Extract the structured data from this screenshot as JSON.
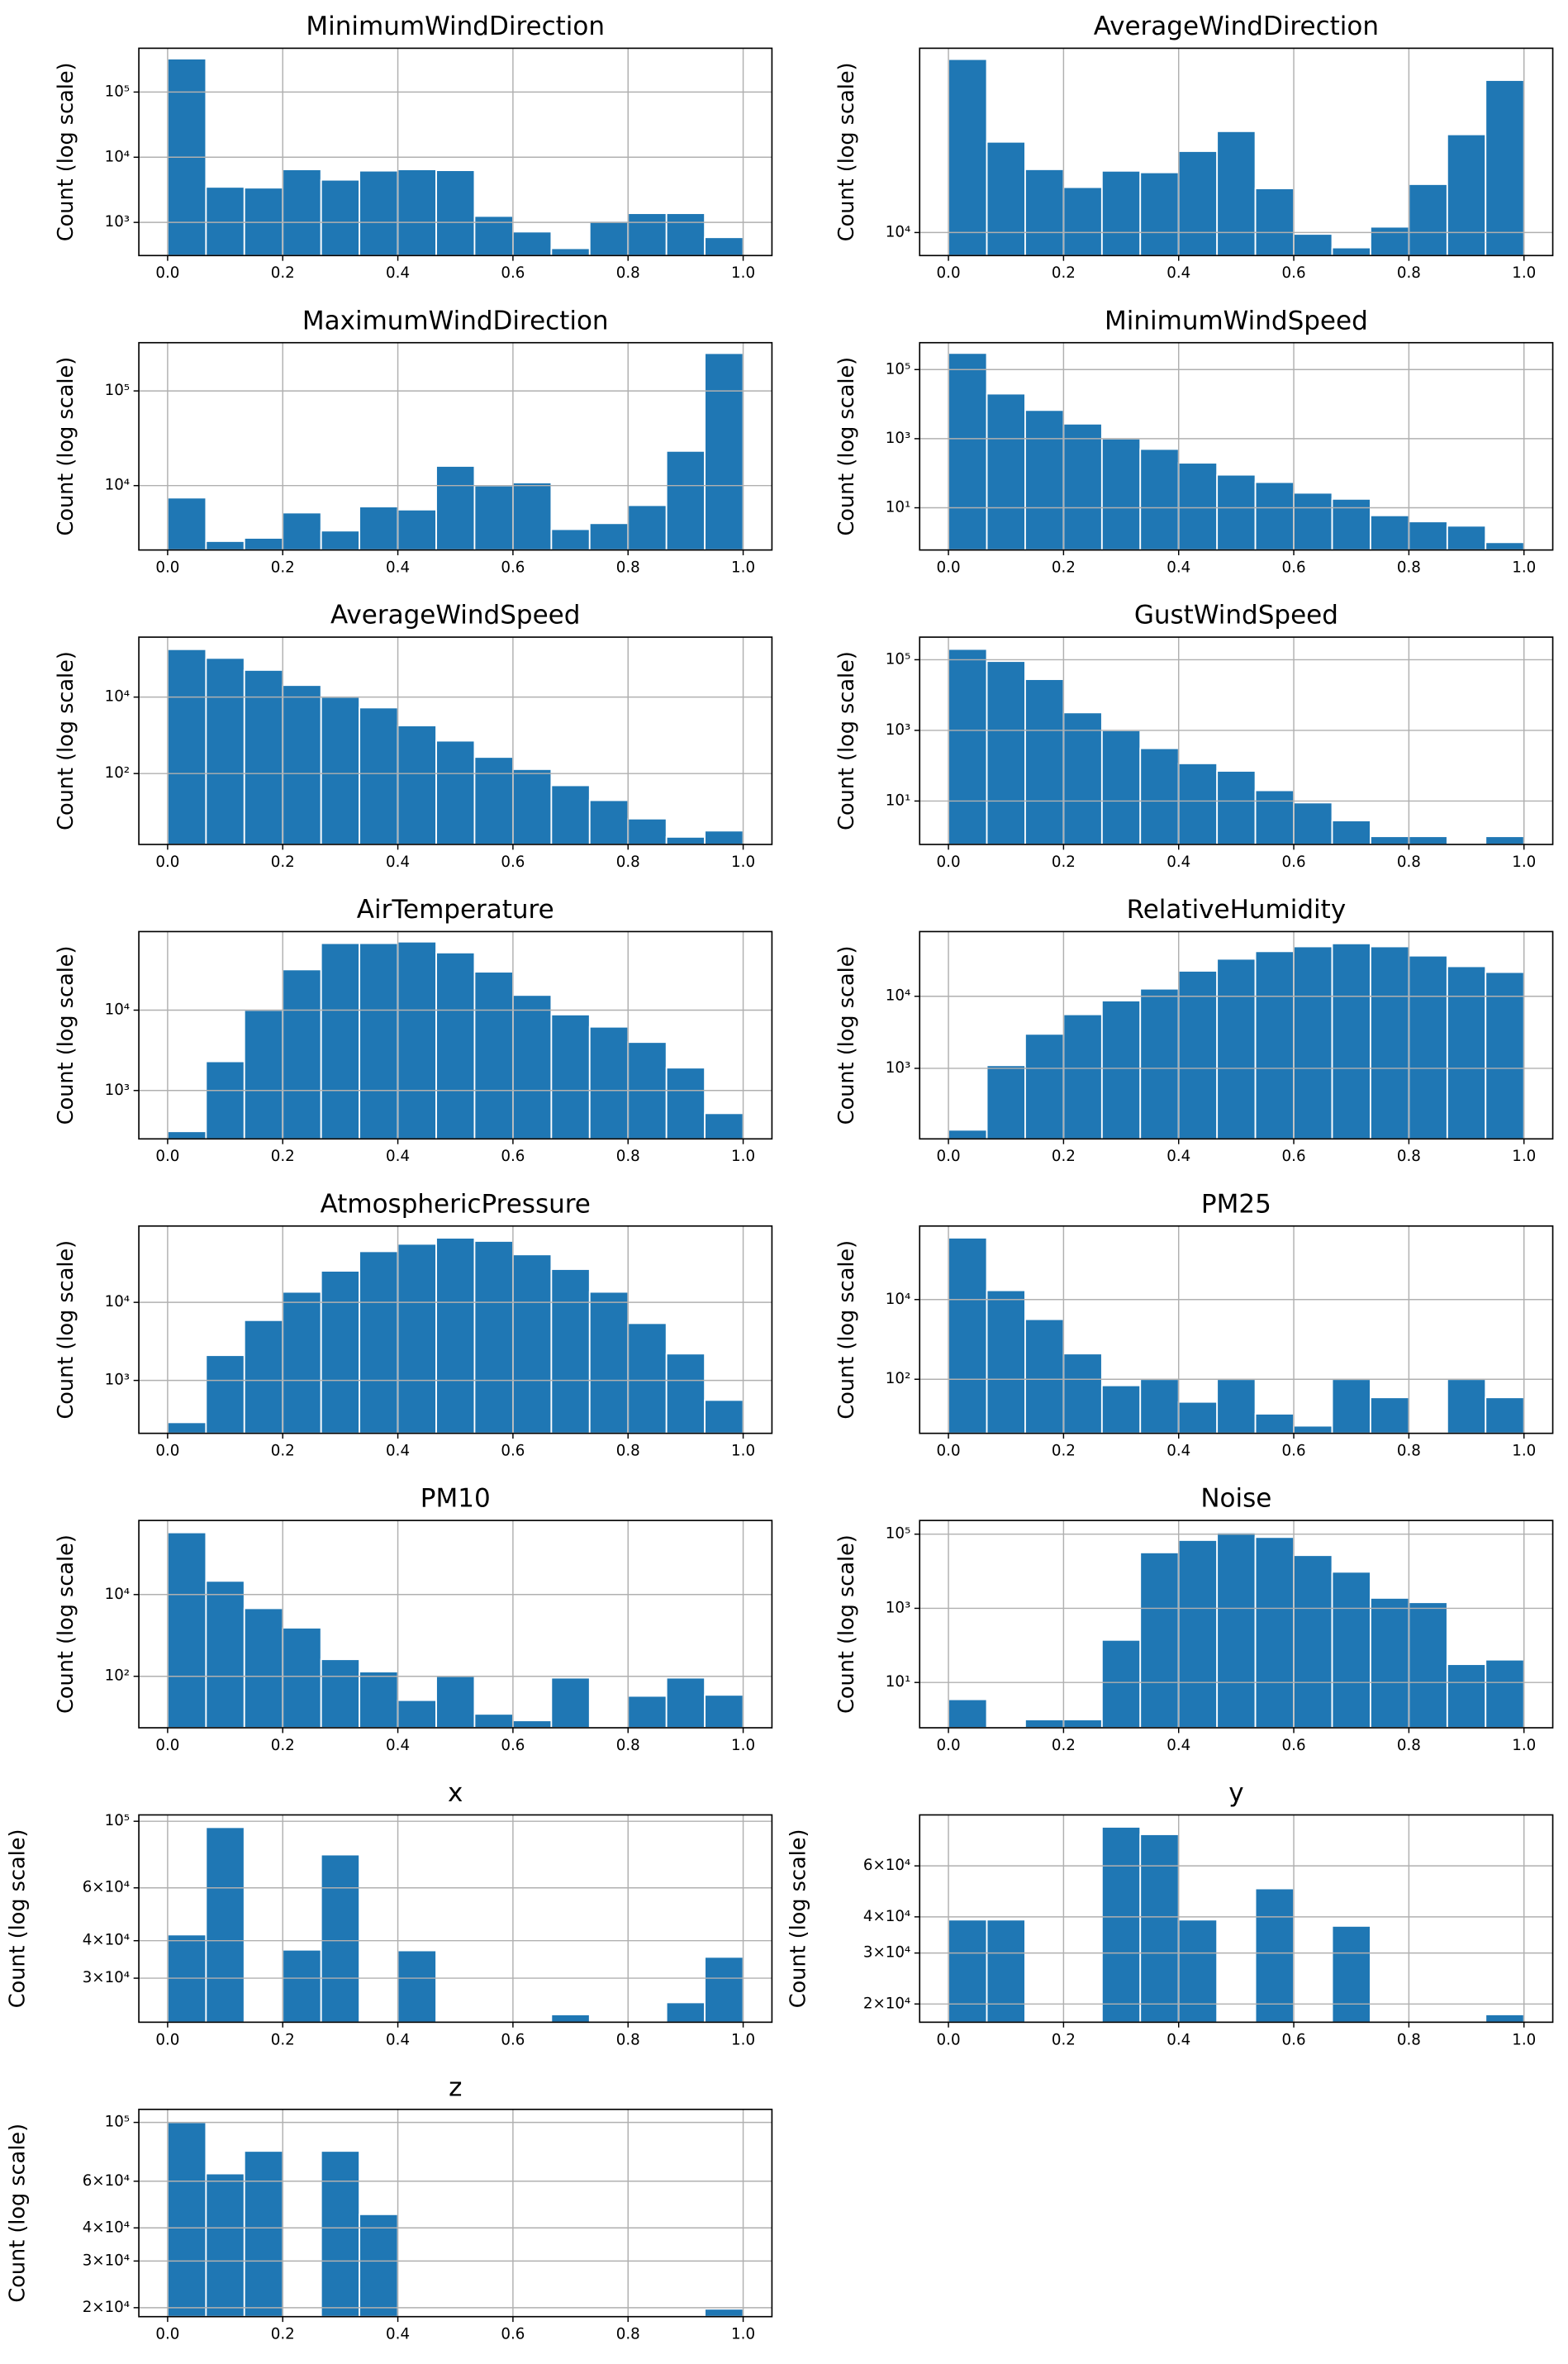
{
  "chart_data": [
    {
      "type": "histogram",
      "title": "MinimumWindDirection",
      "ylabel": "Count (log scale)",
      "color": "#1f77b4",
      "yscale": "log",
      "grid": true,
      "bins": [
        0,
        0.0667,
        0.1333,
        0.2,
        0.2667,
        0.3333,
        0.4,
        0.4667,
        0.5333,
        0.6,
        0.6667,
        0.7333,
        0.8,
        0.8667,
        0.9333,
        1
      ],
      "values": [
        325000,
        3500,
        3400,
        6500,
        4500,
        6200,
        6500,
        6300,
        1250,
        720,
        400,
        1050,
        1380,
        1380,
        590
      ],
      "xlim": [
        -0.05,
        1.05
      ],
      "xticks": [
        {
          "value": 0,
          "label": "0.0"
        },
        0.2,
        0.4,
        0.6,
        0.8,
        {
          "value": 1,
          "label": "1.0"
        }
      ],
      "ylim": [
        310,
        470000
      ],
      "yticks": [
        {
          "value": 1000,
          "label": "10³"
        },
        {
          "value": 10000,
          "label": "10⁴"
        },
        {
          "value": 100000,
          "label": "10⁵"
        }
      ]
    },
    {
      "type": "histogram",
      "title": "AverageWindDirection",
      "ylabel": "Count (log scale)",
      "color": "#1f77b4",
      "yscale": "log",
      "grid": true,
      "bins": [
        0,
        0.0667,
        0.1333,
        0.2,
        0.2667,
        0.3333,
        0.4,
        0.4667,
        0.5333,
        0.6,
        0.6667,
        0.7333,
        0.8,
        0.8667,
        0.9333,
        1
      ],
      "values": [
        59000,
        25300,
        19100,
        15900,
        18800,
        18500,
        23000,
        28200,
        15700,
        9850,
        8570,
        10600,
        16400,
        27300,
        47600
      ],
      "xlim": [
        -0.05,
        1.05
      ],
      "xticks": [
        {
          "value": 0,
          "label": "0.0"
        },
        0.2,
        0.4,
        0.6,
        0.8,
        {
          "value": 1,
          "label": "1.0"
        }
      ],
      "ylim": [
        7900,
        66000
      ],
      "yticks": [
        {
          "value": 10000,
          "label": "10⁴"
        }
      ]
    },
    {
      "type": "histogram",
      "title": "MaximumWindDirection",
      "ylabel": "Count (log scale)",
      "color": "#1f77b4",
      "yscale": "log",
      "grid": true,
      "bins": [
        0,
        0.0667,
        0.1333,
        0.2,
        0.2667,
        0.3333,
        0.4,
        0.4667,
        0.5333,
        0.6,
        0.6667,
        0.7333,
        0.8,
        0.8667,
        0.9333,
        1
      ],
      "values": [
        7450,
        2590,
        2800,
        5180,
        3340,
        6000,
        5570,
        16100,
        10000,
        10760,
        3460,
        4000,
        6200,
        23200,
        250000
      ],
      "xlim": [
        -0.05,
        1.05
      ],
      "xticks": [
        {
          "value": 0,
          "label": "0.0"
        },
        0.2,
        0.4,
        0.6,
        0.8,
        {
          "value": 1,
          "label": "1.0"
        }
      ],
      "ylim": [
        2090,
        323000
      ],
      "yticks": [
        {
          "value": 10000,
          "label": "10⁴"
        },
        {
          "value": 100000,
          "label": "10⁵"
        }
      ]
    },
    {
      "type": "histogram",
      "title": "MinimumWindSpeed",
      "ylabel": "Count (log scale)",
      "color": "#1f77b4",
      "yscale": "log",
      "grid": true,
      "bins": [
        0,
        0.0667,
        0.1333,
        0.2,
        0.2667,
        0.3333,
        0.4,
        0.4667,
        0.5333,
        0.6,
        0.6667,
        0.7333,
        0.8,
        0.8667,
        0.9333,
        1
      ],
      "values": [
        300000,
        20000,
        6700,
        2700,
        1000,
        500,
        200,
        90,
        55,
        27,
        18,
        6,
        4,
        3,
        1
      ],
      "xlim": [
        -0.05,
        1.05
      ],
      "xticks": [
        {
          "value": 0,
          "label": "0.0"
        },
        0.2,
        0.4,
        0.6,
        0.8,
        {
          "value": 1,
          "label": "1.0"
        }
      ],
      "ylim": [
        0.6,
        600000
      ],
      "yticks": [
        {
          "value": 10,
          "label": "10¹"
        },
        {
          "value": 1000,
          "label": "10³"
        },
        {
          "value": 100000,
          "label": "10⁵"
        }
      ]
    },
    {
      "type": "histogram",
      "title": "AverageWindSpeed",
      "ylabel": "Count (log scale)",
      "color": "#1f77b4",
      "yscale": "log",
      "grid": true,
      "bins": [
        0,
        0.0667,
        0.1333,
        0.2,
        0.2667,
        0.3333,
        0.4,
        0.4667,
        0.5333,
        0.6,
        0.6667,
        0.7333,
        0.8,
        0.8667,
        0.9333,
        1
      ],
      "values": [
        178000,
        105000,
        51000,
        20500,
        10000,
        5300,
        1800,
        720,
        270,
        130,
        49,
        20,
        6.6,
        2.2,
        3.2
      ],
      "xlim": [
        -0.05,
        1.05
      ],
      "xticks": [
        {
          "value": 0,
          "label": "0.0"
        },
        0.2,
        0.4,
        0.6,
        0.8,
        {
          "value": 1,
          "label": "1.0"
        }
      ],
      "ylim": [
        1.4,
        370000
      ],
      "yticks": [
        {
          "value": 100,
          "label": "10²"
        },
        {
          "value": 10000,
          "label": "10⁴"
        }
      ]
    },
    {
      "type": "histogram",
      "title": "GustWindSpeed",
      "ylabel": "Count (log scale)",
      "color": "#1f77b4",
      "yscale": "log",
      "grid": true,
      "bins": [
        0,
        0.0667,
        0.1333,
        0.2,
        0.2667,
        0.3333,
        0.4,
        0.4667,
        0.5333,
        0.6,
        0.6667,
        0.7333,
        0.8,
        0.8667,
        0.9333,
        1
      ],
      "values": [
        200000,
        91000,
        28000,
        3200,
        1000,
        310,
        116,
        71,
        20,
        9,
        2.8,
        1,
        1,
        0,
        1
      ],
      "xlim": [
        -0.05,
        1.05
      ],
      "xticks": [
        {
          "value": 0,
          "label": "0.0"
        },
        0.2,
        0.4,
        0.6,
        0.8,
        {
          "value": 1,
          "label": "1.0"
        }
      ],
      "ylim": [
        0.59,
        436000
      ],
      "yticks": [
        {
          "value": 10,
          "label": "10¹"
        },
        {
          "value": 1000,
          "label": "10³"
        },
        {
          "value": 100000,
          "label": "10⁵"
        }
      ]
    },
    {
      "type": "histogram",
      "title": "AirTemperature",
      "ylabel": "Count (log scale)",
      "color": "#1f77b4",
      "yscale": "log",
      "grid": true,
      "bins": [
        0,
        0.0667,
        0.1333,
        0.2,
        0.2667,
        0.3333,
        0.4,
        0.4667,
        0.5333,
        0.6,
        0.6667,
        0.7333,
        0.8,
        0.8667,
        0.9333,
        1
      ],
      "values": [
        310,
        2300,
        10000,
        32000,
        68000,
        68000,
        71000,
        52000,
        30000,
        15400,
        8800,
        6200,
        4000,
        1920,
        520
      ],
      "xlim": [
        -0.05,
        1.05
      ],
      "xticks": [
        {
          "value": 0,
          "label": "0.0"
        },
        0.2,
        0.4,
        0.6,
        0.8,
        {
          "value": 1,
          "label": "1.0"
        }
      ],
      "ylim": [
        250,
        95000
      ],
      "yticks": [
        {
          "value": 1000,
          "label": "10³"
        },
        {
          "value": 10000,
          "label": "10⁴"
        }
      ]
    },
    {
      "type": "histogram",
      "title": "RelativeHumidity",
      "ylabel": "Count (log scale)",
      "color": "#1f77b4",
      "yscale": "log",
      "grid": true,
      "bins": [
        0,
        0.0667,
        0.1333,
        0.2,
        0.2667,
        0.3333,
        0.4,
        0.4667,
        0.5333,
        0.6,
        0.6667,
        0.7333,
        0.8,
        0.8667,
        0.9333,
        1
      ],
      "values": [
        140,
        1100,
        3000,
        5600,
        8700,
        12700,
        22500,
        33000,
        42000,
        49000,
        54000,
        49000,
        36500,
        26000,
        21600
      ],
      "xlim": [
        -0.05,
        1.05
      ],
      "xticks": [
        {
          "value": 0,
          "label": "0.0"
        },
        0.2,
        0.4,
        0.6,
        0.8,
        {
          "value": 1,
          "label": "1.0"
        }
      ],
      "ylim": [
        105,
        79000
      ],
      "yticks": [
        {
          "value": 1000,
          "label": "10³"
        },
        {
          "value": 10000,
          "label": "10⁴"
        }
      ]
    },
    {
      "type": "histogram",
      "title": "AtmosphericPressure",
      "ylabel": "Count (log scale)",
      "color": "#1f77b4",
      "yscale": "log",
      "grid": true,
      "bins": [
        0,
        0.0667,
        0.1333,
        0.2,
        0.2667,
        0.3333,
        0.4,
        0.4667,
        0.5333,
        0.6,
        0.6667,
        0.7333,
        0.8,
        0.8667,
        0.9333,
        1
      ],
      "values": [
        290,
        2100,
        5900,
        13600,
        25300,
        45000,
        56000,
        67000,
        61000,
        41000,
        26600,
        13600,
        5400,
        2200,
        560
      ],
      "xlim": [
        -0.05,
        1.05
      ],
      "xticks": [
        {
          "value": 0,
          "label": "0.0"
        },
        0.2,
        0.4,
        0.6,
        0.8,
        {
          "value": 1,
          "label": "1.0"
        }
      ],
      "ylim": [
        210,
        95000
      ],
      "yticks": [
        {
          "value": 1000,
          "label": "10³"
        },
        {
          "value": 10000,
          "label": "10⁴"
        }
      ]
    },
    {
      "type": "histogram",
      "title": "PM25",
      "ylabel": "Count (log scale)",
      "color": "#1f77b4",
      "yscale": "log",
      "grid": true,
      "bins": [
        0,
        0.0667,
        0.1333,
        0.2,
        0.2667,
        0.3333,
        0.4,
        0.4667,
        0.5333,
        0.6,
        0.6667,
        0.7333,
        0.8,
        0.8667,
        0.9333,
        1
      ],
      "values": [
        355000,
        17000,
        3200,
        440,
        70,
        100,
        27,
        100,
        13.6,
        6.8,
        100,
        35,
        0,
        100,
        35
      ],
      "xlim": [
        -0.05,
        1.05
      ],
      "xticks": [
        {
          "value": 0,
          "label": "0.0"
        },
        0.2,
        0.4,
        0.6,
        0.8,
        {
          "value": 1,
          "label": "1.0"
        }
      ],
      "ylim": [
        4.4,
        700000
      ],
      "yticks": [
        {
          "value": 100,
          "label": "10²"
        },
        {
          "value": 10000,
          "label": "10⁴"
        }
      ]
    },
    {
      "type": "histogram",
      "title": "PM10",
      "ylabel": "Count (log scale)",
      "color": "#1f77b4",
      "yscale": "log",
      "grid": true,
      "bins": [
        0,
        0.0667,
        0.1333,
        0.2,
        0.2667,
        0.3333,
        0.4,
        0.4667,
        0.5333,
        0.6,
        0.6667,
        0.7333,
        0.8,
        0.8667,
        0.9333,
        1
      ],
      "values": [
        330000,
        21500,
        4600,
        1540,
        260,
        130,
        26,
        100,
        12,
        8.3,
        92,
        0,
        33,
        92,
        35
      ],
      "xlim": [
        -0.05,
        1.05
      ],
      "xticks": [
        {
          "value": 0,
          "label": "0.0"
        },
        0.2,
        0.4,
        0.6,
        0.8,
        {
          "value": 1,
          "label": "1.0"
        }
      ],
      "ylim": [
        5.5,
        650000
      ],
      "yticks": [
        {
          "value": 100,
          "label": "10²"
        },
        {
          "value": 10000,
          "label": "10⁴"
        }
      ]
    },
    {
      "type": "histogram",
      "title": "Noise",
      "ylabel": "Count (log scale)",
      "color": "#1f77b4",
      "yscale": "log",
      "grid": true,
      "bins": [
        0,
        0.0667,
        0.1333,
        0.2,
        0.2667,
        0.3333,
        0.4,
        0.4667,
        0.5333,
        0.6,
        0.6667,
        0.7333,
        0.8,
        0.8667,
        0.9333,
        1
      ],
      "values": [
        3.5,
        0,
        1,
        1,
        140,
        32000,
        69000,
        110000,
        83000,
        27000,
        9600,
        1900,
        1450,
        31,
        41
      ],
      "xlim": [
        -0.05,
        1.05
      ],
      "xticks": [
        {
          "value": 0,
          "label": "0.0"
        },
        0.2,
        0.4,
        0.6,
        0.8,
        {
          "value": 1,
          "label": "1.0"
        }
      ],
      "ylim": [
        0.6,
        234000
      ],
      "yticks": [
        {
          "value": 10,
          "label": "10¹"
        },
        {
          "value": 1000,
          "label": "10³"
        },
        {
          "value": 100000,
          "label": "10⁵"
        }
      ]
    },
    {
      "type": "histogram",
      "title": "x",
      "ylabel": "Count (log scale)",
      "color": "#1f77b4",
      "yscale": "log",
      "grid": true,
      "bins": [
        0,
        0.0667,
        0.1333,
        0.2,
        0.2667,
        0.3333,
        0.4,
        0.4667,
        0.5333,
        0.6,
        0.6667,
        0.7333,
        0.8,
        0.8667,
        0.9333,
        1
      ],
      "values": [
        41900,
        95500,
        0,
        37300,
        77400,
        0,
        37100,
        0,
        0,
        0,
        22700,
        0,
        0,
        24900,
        35300
      ],
      "xlim": [
        -0.05,
        1.05
      ],
      "xticks": [
        {
          "value": 0,
          "label": "0.0"
        },
        0.2,
        0.4,
        0.6,
        0.8,
        {
          "value": 1,
          "label": "1.0"
        }
      ],
      "ylim": [
        21400,
        105000
      ],
      "yticks": [
        {
          "value": 30000,
          "label": "3×10⁴"
        },
        {
          "value": 40000,
          "label": "4×10⁴"
        },
        {
          "value": 60000,
          "label": "6×10⁴"
        },
        {
          "value": 100000,
          "label": "10⁵"
        }
      ]
    },
    {
      "type": "histogram",
      "title": "y",
      "ylabel": "Count (log scale)",
      "color": "#1f77b4",
      "yscale": "log",
      "grid": true,
      "bins": [
        0,
        0.0667,
        0.1333,
        0.2,
        0.2667,
        0.3333,
        0.4,
        0.4667,
        0.5333,
        0.6,
        0.6667,
        0.7333,
        0.8,
        0.8667,
        0.9333,
        1
      ],
      "values": [
        39100,
        39100,
        0,
        0,
        81800,
        77100,
        39100,
        0,
        50100,
        0,
        37200,
        0,
        0,
        0,
        18400
      ],
      "xlim": [
        -0.05,
        1.05
      ],
      "xticks": [
        {
          "value": 0,
          "label": "0.0"
        },
        0.2,
        0.4,
        0.6,
        0.8,
        {
          "value": 1,
          "label": "1.0"
        }
      ],
      "ylim": [
        17300,
        90000
      ],
      "yticks": [
        {
          "value": 20000,
          "label": "2×10⁴"
        },
        {
          "value": 30000,
          "label": "3×10⁴"
        },
        {
          "value": 40000,
          "label": "4×10⁴"
        },
        {
          "value": 60000,
          "label": "6×10⁴"
        }
      ]
    },
    {
      "type": "histogram",
      "title": "z",
      "ylabel": "Count (log scale)",
      "color": "#1f77b4",
      "yscale": "log",
      "grid": true,
      "bins": [
        0,
        0.0667,
        0.1333,
        0.2,
        0.2667,
        0.3333,
        0.4,
        0.4667,
        0.5333,
        0.6,
        0.6667,
        0.7333,
        0.8,
        0.8667,
        0.9333,
        1
      ],
      "values": [
        100000,
        64100,
        78000,
        0,
        78000,
        45000,
        0,
        0,
        0,
        0,
        0,
        0,
        0,
        0,
        19800
      ],
      "xlim": [
        -0.05,
        1.05
      ],
      "xticks": [
        {
          "value": 0,
          "label": "0.0"
        },
        0.2,
        0.4,
        0.6,
        0.8,
        {
          "value": 1,
          "label": "1.0"
        }
      ],
      "ylim": [
        18500,
        112000
      ],
      "yticks": [
        {
          "value": 20000,
          "label": "2×10⁴"
        },
        {
          "value": 30000,
          "label": "3×10⁴"
        },
        {
          "value": 40000,
          "label": "4×10⁴"
        },
        {
          "value": 60000,
          "label": "6×10⁴"
        },
        {
          "value": 100000,
          "label": "10⁵"
        }
      ]
    }
  ]
}
